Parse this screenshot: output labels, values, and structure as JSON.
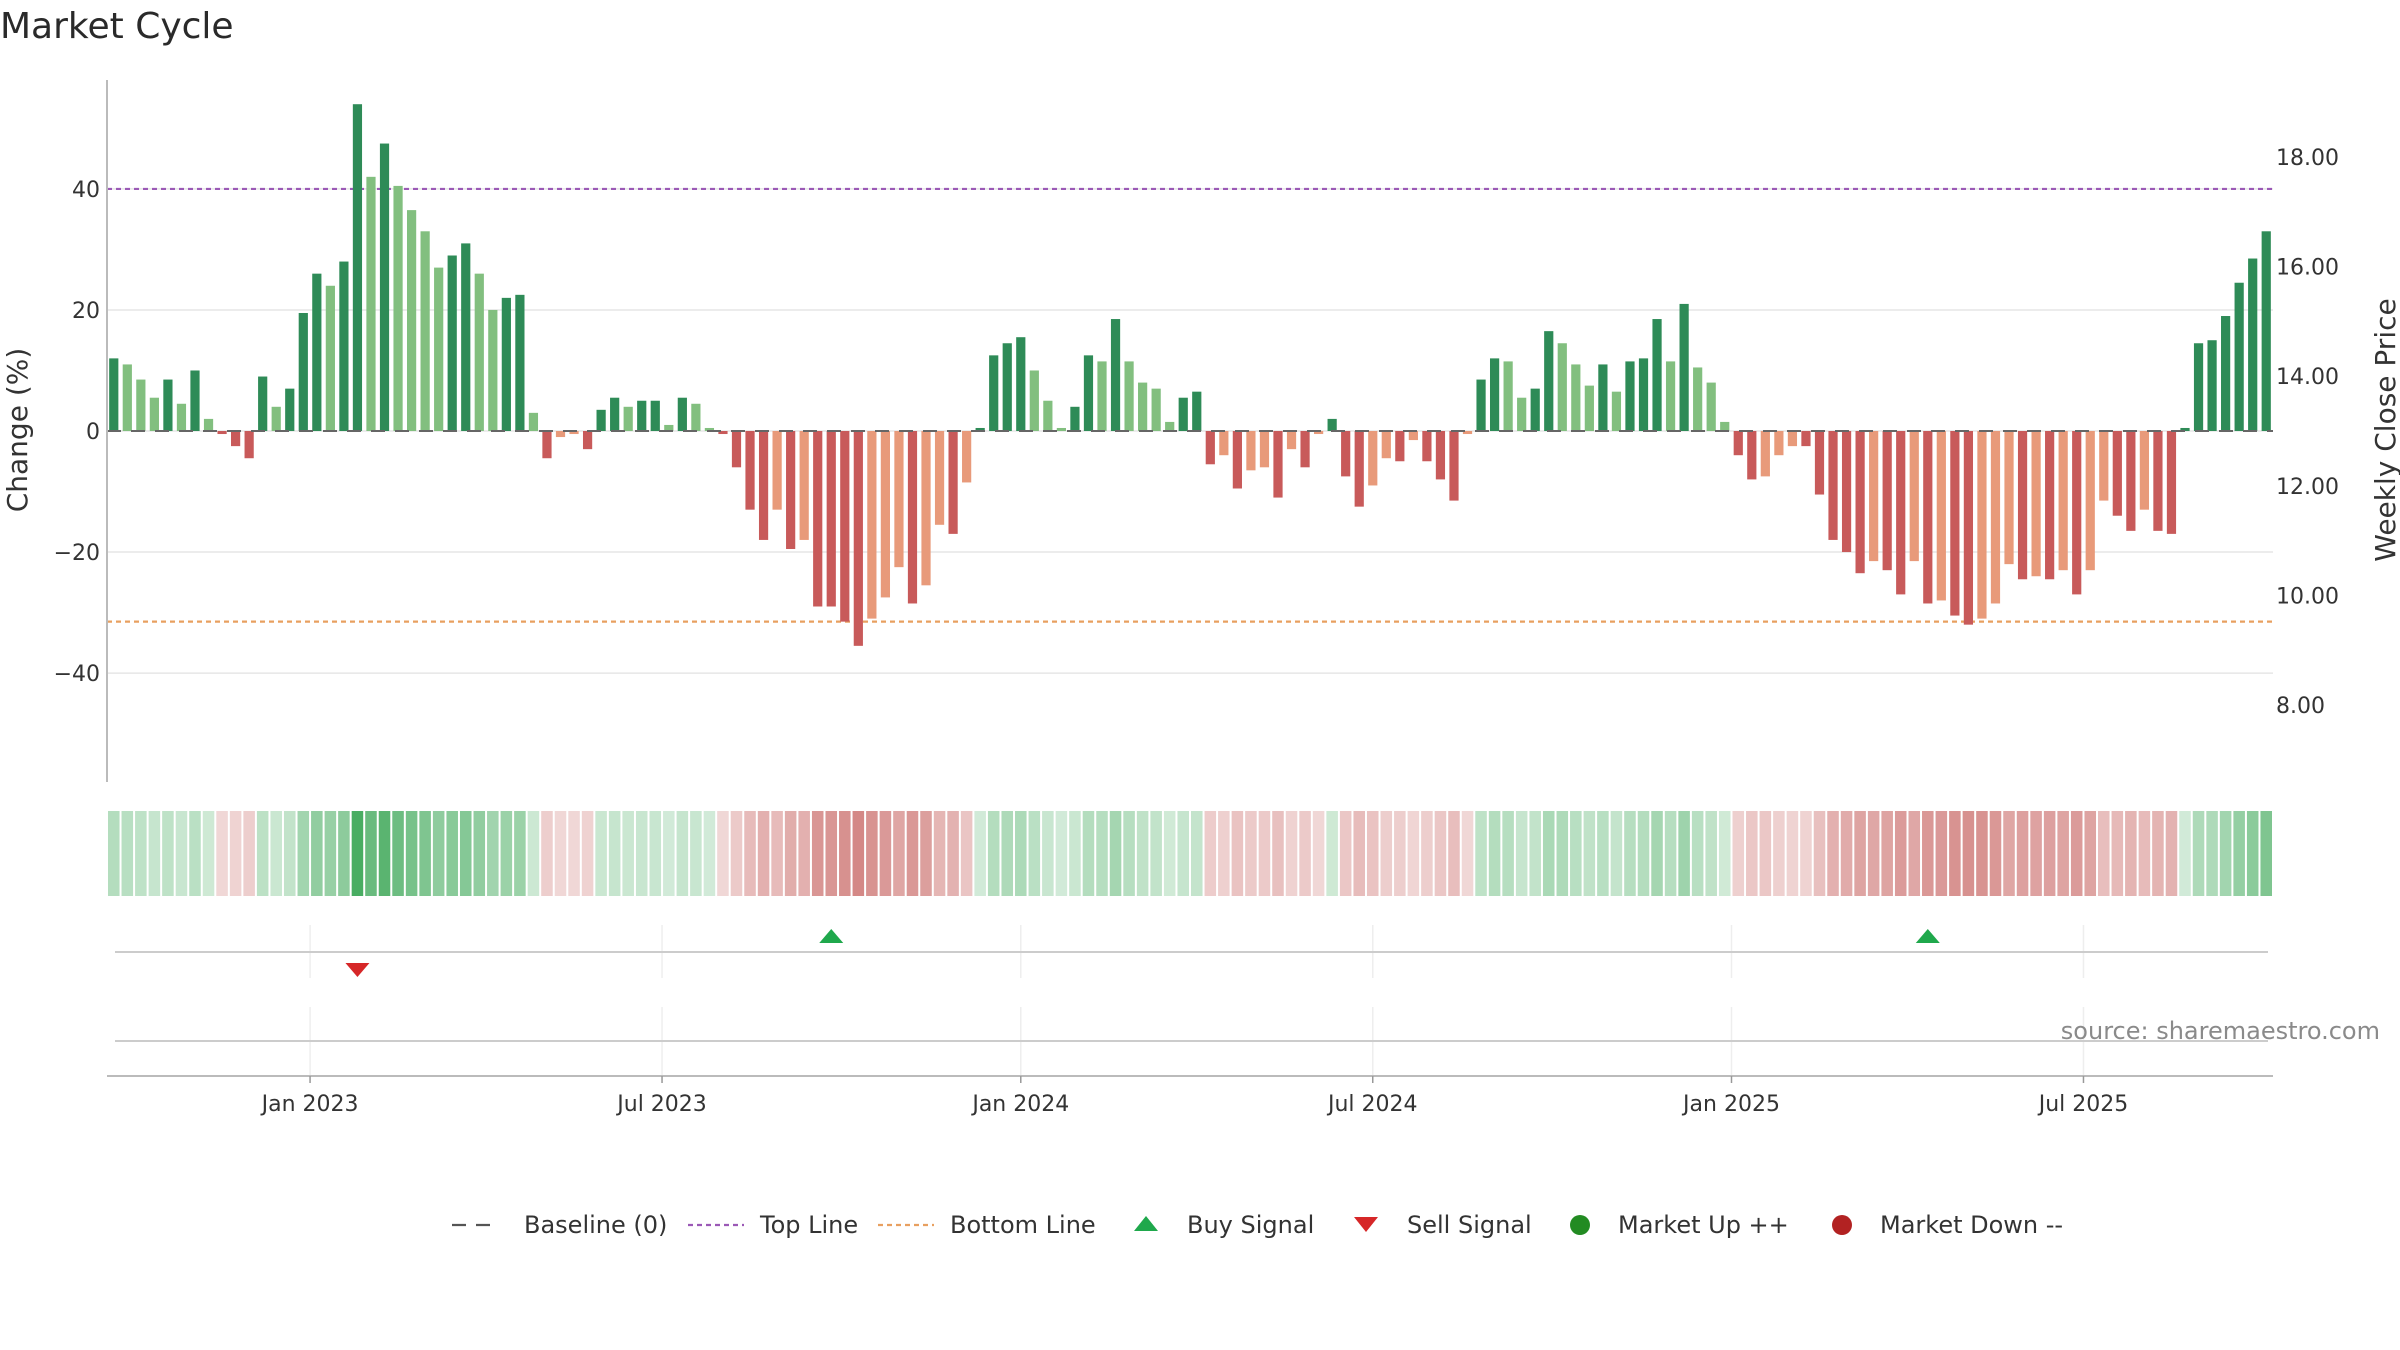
{
  "chart_data": {
    "type": "bar",
    "title": "Market Cycle",
    "ylabel_left": "Change (%)",
    "ylabel_right": "Weekly Close Price",
    "source": "source: sharemaestro.com",
    "y_left_range": [
      -58,
      58
    ],
    "y_left_ticks": [
      {
        "value": 40,
        "label": "40"
      },
      {
        "value": 20,
        "label": "20"
      },
      {
        "value": 0,
        "label": "0"
      },
      {
        "value": -20,
        "label": "−20"
      },
      {
        "value": -40,
        "label": "−40"
      }
    ],
    "y_right_range": [
      6.6,
      19.4
    ],
    "y_right_ticks": [
      {
        "value": 18,
        "label": "18.00"
      },
      {
        "value": 16,
        "label": "16.00"
      },
      {
        "value": 14,
        "label": "14.00"
      },
      {
        "value": 12,
        "label": "12.00"
      },
      {
        "value": 10,
        "label": "10.00"
      },
      {
        "value": 8,
        "label": "8.00"
      }
    ],
    "top_line": 40,
    "bottom_line": -31.5,
    "x_ticks": [
      "Jan 2023",
      "Jul 2023",
      "Jan 2024",
      "Jul 2024",
      "Jan 2025",
      "Jul 2025"
    ],
    "x_tick_week_index": [
      15,
      41,
      67.5,
      93.5,
      120,
      146
    ],
    "weekly_change": [
      12,
      11,
      8.5,
      5.5,
      8.5,
      4.5,
      10,
      2,
      -0.5,
      -2.5,
      -4.5,
      9,
      4,
      7,
      19.5,
      26,
      24,
      28,
      54,
      42,
      47.5,
      40.5,
      36.5,
      33,
      27,
      29,
      31,
      26,
      20,
      22,
      22.5,
      3,
      -4.5,
      -1,
      -0.5,
      -3,
      3.5,
      5.5,
      4,
      5,
      5,
      1,
      5.5,
      4.5,
      0.5,
      -0.5,
      -6,
      -13,
      -18,
      -13,
      -19.5,
      -18,
      -29,
      -29,
      -31.5,
      -35.5,
      -31,
      -27.5,
      -22.5,
      -28.5,
      -25.5,
      -15.5,
      -17,
      -8.5,
      0.5,
      12.5,
      14.5,
      15.5,
      10,
      5,
      0.5,
      4,
      12.5,
      11.5,
      18.5,
      11.5,
      8,
      7,
      1.5,
      5.5,
      6.5,
      -5.5,
      -4,
      -9.5,
      -6.5,
      -6,
      -11,
      -3,
      -6,
      -0.5,
      2,
      -7.5,
      -12.5,
      -9,
      -4.5,
      -5,
      -1.5,
      -5,
      -8,
      -11.5,
      -0.5,
      8.5,
      12,
      11.5,
      5.5,
      7,
      16.5,
      14.5,
      11,
      7.5,
      11,
      6.5,
      11.5,
      12,
      18.5,
      11.5,
      21,
      10.5,
      8,
      1.5,
      -4,
      -8,
      -7.5,
      -4,
      -2.5,
      -2.5,
      -10.5,
      -18,
      -20,
      -23.5,
      -21.5,
      -23,
      -27,
      -21.5,
      -28.5,
      -28,
      -30.5,
      -32,
      -31,
      -28.5,
      -22,
      -24.5,
      -24,
      -24.5,
      -23,
      -27,
      -23,
      -11.5,
      -14,
      -16.5,
      -13,
      -16.5,
      -17,
      0.5,
      14.5,
      15,
      19,
      24.5,
      28.5,
      33
    ],
    "weekly_close_price": [
      null
    ],
    "signals": [
      {
        "type": "sell",
        "label": "Sell Signal",
        "week_index": 18
      },
      {
        "type": "buy",
        "label": "Buy Signal",
        "week_index": 53
      },
      {
        "type": "buy",
        "label": "Buy Signal",
        "week_index": 134
      }
    ],
    "legend": [
      {
        "key": "baseline",
        "label": "Baseline (0)"
      },
      {
        "key": "top",
        "label": "Top Line"
      },
      {
        "key": "bottom",
        "label": "Bottom Line"
      },
      {
        "key": "buy",
        "label": "Buy Signal"
      },
      {
        "key": "sell",
        "label": "Sell Signal"
      },
      {
        "key": "up",
        "label": "Market Up ++"
      },
      {
        "key": "down",
        "label": "Market Down --"
      }
    ],
    "colors": {
      "bar_up_strong": "#2e8b57",
      "bar_up_weak": "#82bf7f",
      "bar_down_strong": "#c85a5a",
      "bar_down_weak": "#e89a7a",
      "top_line": "#9b59b6",
      "bottom_line": "#e8a060",
      "buy": "#1fa84c",
      "sell": "#d62728",
      "up_dot": "#228b22",
      "down_dot": "#b22222",
      "baseline": "#666666"
    }
  }
}
